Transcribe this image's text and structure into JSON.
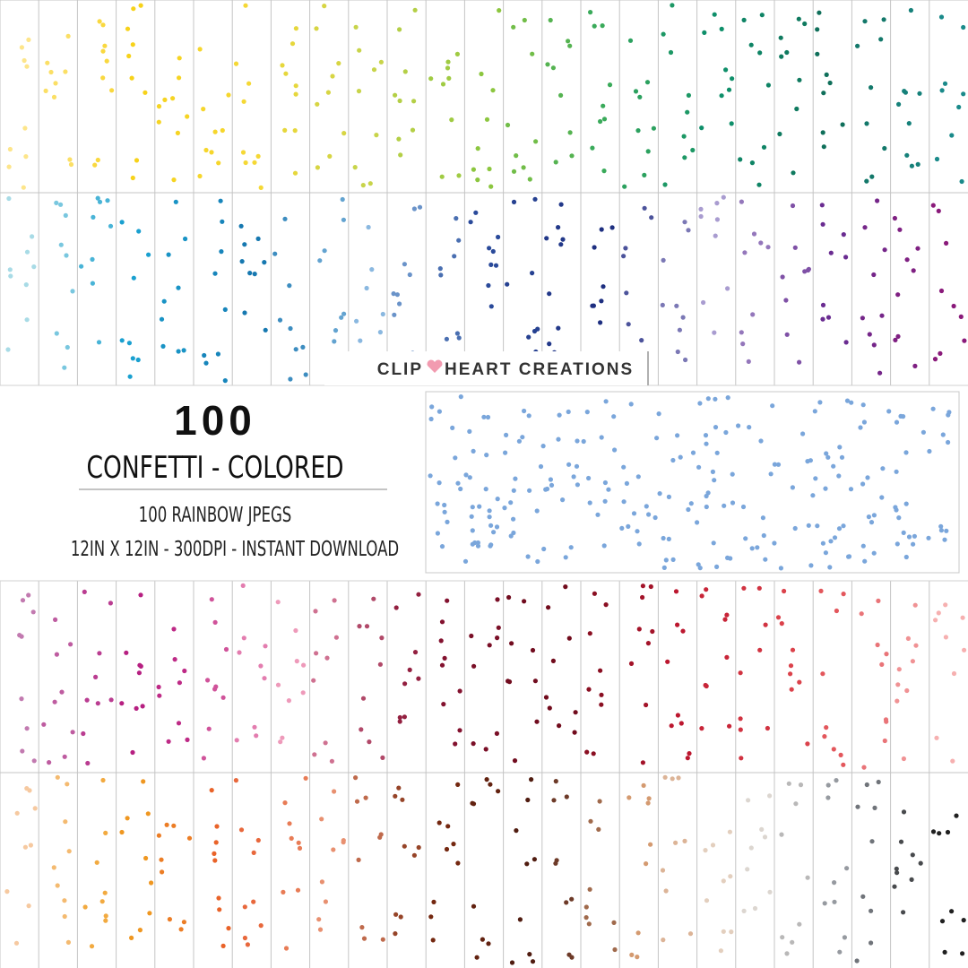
{
  "brand": {
    "left": "CLIP",
    "right": "HEART CREATIONS"
  },
  "title": "100",
  "subtitle": "CONFETTI - COLORED",
  "details": [
    "100 RAINBOW JPEGS",
    "12IN X 12IN - 300DPI - INSTANT DOWNLOAD"
  ]
}
